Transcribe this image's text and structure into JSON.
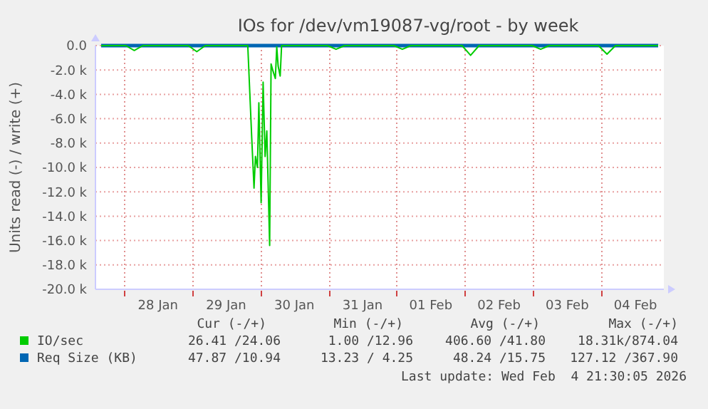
{
  "chart_data": {
    "type": "line",
    "title": "IOs for /dev/vm19087-vg/root - by week",
    "ylabel": "Units read (-) / write (+)",
    "xlim": [
      "2026-01-27T14:00",
      "2026-02-04T22:00"
    ],
    "xticks": [
      {
        "value": "2026-01-28T00:00",
        "label": null
      },
      {
        "value": "2026-01-28T12:00",
        "label": "28 Jan"
      },
      {
        "value": "2026-01-29T00:00",
        "label": null
      },
      {
        "value": "2026-01-29T12:00",
        "label": "29 Jan"
      },
      {
        "value": "2026-01-30T00:00",
        "label": null
      },
      {
        "value": "2026-01-30T12:00",
        "label": "30 Jan"
      },
      {
        "value": "2026-01-31T00:00",
        "label": null
      },
      {
        "value": "2026-01-31T12:00",
        "label": "31 Jan"
      },
      {
        "value": "2026-02-01T00:00",
        "label": null
      },
      {
        "value": "2026-02-01T12:00",
        "label": "01 Feb"
      },
      {
        "value": "2026-02-02T00:00",
        "label": null
      },
      {
        "value": "2026-02-02T12:00",
        "label": "02 Feb"
      },
      {
        "value": "2026-02-03T00:00",
        "label": null
      },
      {
        "value": "2026-02-03T12:00",
        "label": "03 Feb"
      },
      {
        "value": "2026-02-04T00:00",
        "label": null
      },
      {
        "value": "2026-02-04T12:00",
        "label": "04 Feb"
      }
    ],
    "ylim": [
      -20000,
      0
    ],
    "yticks": [
      {
        "value": 0,
        "label": "0.0"
      },
      {
        "value": -2000,
        "label": "-2.0 k"
      },
      {
        "value": -4000,
        "label": "-4.0 k"
      },
      {
        "value": -6000,
        "label": "-6.0 k"
      },
      {
        "value": -8000,
        "label": "-8.0 k"
      },
      {
        "value": -10000,
        "label": "-10.0 k"
      },
      {
        "value": -12000,
        "label": "-12.0 k"
      },
      {
        "value": -14000,
        "label": "-14.0 k"
      },
      {
        "value": -16000,
        "label": "-16.0 k"
      },
      {
        "value": -18000,
        "label": "-18.0 k"
      },
      {
        "value": -20000,
        "label": "-20.0 k"
      }
    ],
    "grid": true,
    "legend": "bottom",
    "series": [
      {
        "name": "IO/sec",
        "color": "#00cc00",
        "x": [
          "2026-01-27T16:00",
          "2026-01-28T00:40",
          "2026-01-28T03:40",
          "2026-01-28T06:40",
          "2026-01-28T22:40",
          "2026-01-29T01:40",
          "2026-01-29T04:40",
          "2026-01-29T19:36",
          "2026-01-29T21:00",
          "2026-01-29T21:48",
          "2026-01-29T22:18",
          "2026-01-29T23:00",
          "2026-01-29T23:30",
          "2026-01-30T00:18",
          "2026-01-30T01:00",
          "2026-01-30T01:42",
          "2026-01-30T02:18",
          "2026-01-30T03:18",
          "2026-01-30T03:48",
          "2026-01-30T04:30",
          "2026-01-30T05:18",
          "2026-01-30T05:48",
          "2026-01-30T06:18",
          "2026-01-30T07:00",
          "2026-01-30T07:30",
          "2026-01-30T23:40",
          "2026-01-31T02:40",
          "2026-01-31T05:40",
          "2026-01-31T23:00",
          "2026-02-01T02:00",
          "2026-02-01T05:00",
          "2026-02-01T23:00",
          "2026-02-02T02:00",
          "2026-02-02T05:00",
          "2026-02-02T23:40",
          "2026-02-03T02:40",
          "2026-02-03T05:40",
          "2026-02-03T23:00",
          "2026-02-04T02:00",
          "2026-02-04T05:00",
          "2026-02-04T20:00"
        ],
        "values": [
          0,
          0,
          -400,
          0,
          0,
          -500,
          0,
          0,
          -7600,
          -11700,
          -9100,
          -10000,
          -4700,
          -12900,
          -3000,
          -9100,
          -7000,
          -16400,
          -1500,
          -2100,
          -2700,
          -100,
          -1700,
          -2500,
          0,
          0,
          -300,
          0,
          0,
          -300,
          0,
          0,
          -800,
          0,
          0,
          -300,
          0,
          0,
          -700,
          0,
          0
        ]
      },
      {
        "name": "Req Size (KB)",
        "color": "#0066b3",
        "x": [
          "2026-01-27T16:00",
          "2026-02-04T20:00"
        ],
        "values": [
          0,
          0
        ]
      }
    ],
    "annotations": [
      "Cur (-/+)",
      "Min (-/+)",
      "Avg (-/+)",
      "Max (-/+)",
      "26.41 /24.06",
      "1.00 /12.96",
      "406.60 /41.80",
      "18.31k/874.04",
      "47.87 /10.94",
      "13.23 / 4.25",
      "48.24 /15.75",
      "127.12 /367.90",
      "Last update: Wed Feb  4 21:30:05 2026"
    ]
  }
}
